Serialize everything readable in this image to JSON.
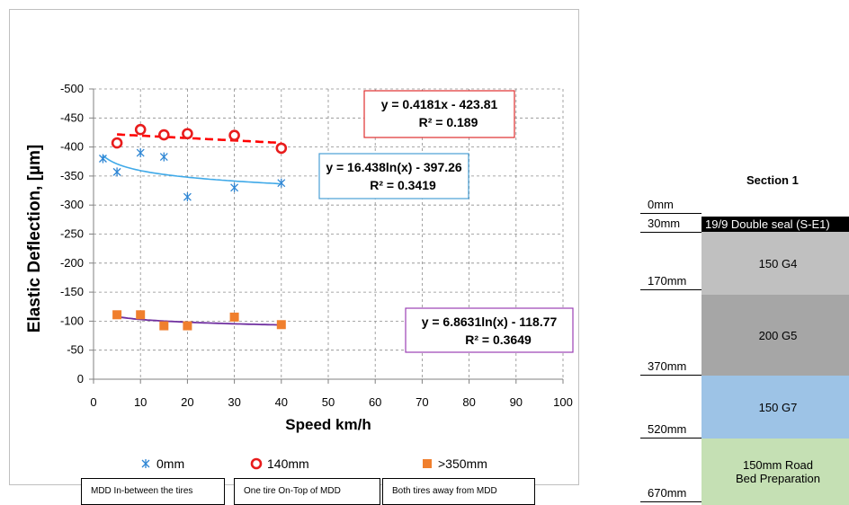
{
  "chart_data": {
    "type": "scatter",
    "xlabel": "Speed km/h",
    "ylabel": "Elastic Deflection, [µm]",
    "xlim": [
      0,
      100
    ],
    "ylim": [
      0,
      -500
    ],
    "x_ticks": [
      "0",
      "10",
      "20",
      "30",
      "40",
      "50",
      "60",
      "70",
      "80",
      "90",
      "100"
    ],
    "y_ticks": [
      "0",
      "-50",
      "-100",
      "-150",
      "-200",
      "-250",
      "-300",
      "-350",
      "-400",
      "-450",
      "-500"
    ],
    "grid": true,
    "legend_position": "bottom",
    "series": [
      {
        "name": "0mm",
        "marker": "asterisk",
        "color": "#2e86d4",
        "points": [
          [
            2,
            -380
          ],
          [
            5,
            -357
          ],
          [
            10,
            -390
          ],
          [
            15,
            -383
          ],
          [
            20,
            -314
          ],
          [
            30,
            -330
          ],
          [
            40,
            -338
          ]
        ],
        "trendline": {
          "kind": "log",
          "a": 16.438,
          "b": -397.26,
          "from": 2,
          "to": 40,
          "equation": "y = 16.438ln(x) - 397.26",
          "r2": "R² = 0.3419",
          "box_color": "#4a9fd6"
        }
      },
      {
        "name": "140mm",
        "marker": "circle",
        "color": "#e81c1c",
        "points": [
          [
            5,
            -407
          ],
          [
            10,
            -430
          ],
          [
            15,
            -421
          ],
          [
            20,
            -423
          ],
          [
            30,
            -420
          ],
          [
            40,
            -398
          ]
        ],
        "trendline": {
          "kind": "linear",
          "a": 0.4181,
          "b": -423.81,
          "from": 5,
          "to": 40,
          "equation": "y = 0.4181x - 423.81",
          "r2": "R² = 0.189",
          "box_color": "#e03030"
        }
      },
      {
        "name": ">350mm",
        "marker": "square",
        "color": "#f07f2d",
        "points": [
          [
            5,
            -111
          ],
          [
            10,
            -111
          ],
          [
            15,
            -92
          ],
          [
            20,
            -92
          ],
          [
            30,
            -107
          ],
          [
            40,
            -94
          ]
        ],
        "trendline": {
          "kind": "log",
          "a": 6.8631,
          "b": -118.77,
          "from": 5,
          "to": 40,
          "equation": "y = 6.8631ln(x) - 118.77",
          "r2": "R² = 0.3649",
          "box_color": "#9b3fb5"
        }
      }
    ]
  },
  "captions": [
    "MDD In-between the tires",
    "One tire On-Top of MDD",
    "Both tires away from  MDD"
  ],
  "section": {
    "title": "Section 1",
    "depths": [
      "0mm",
      "30mm",
      "170mm",
      "370mm",
      "520mm",
      "670mm"
    ],
    "layers": [
      {
        "label": "19/9 Double seal (S-E1)",
        "color": "#000000",
        "text_color": "#ffffff"
      },
      {
        "label": "150 G4",
        "color": "#c0c0c0",
        "text_color": "#000000"
      },
      {
        "label": "200 G5",
        "color": "#a6a6a6",
        "text_color": "#000000"
      },
      {
        "label": "150 G7",
        "color": "#9dc3e6",
        "text_color": "#000000"
      },
      {
        "label": "150mm Road",
        "label2": "Bed Preparation",
        "color": "#c5e0b4",
        "text_color": "#000000"
      }
    ]
  }
}
